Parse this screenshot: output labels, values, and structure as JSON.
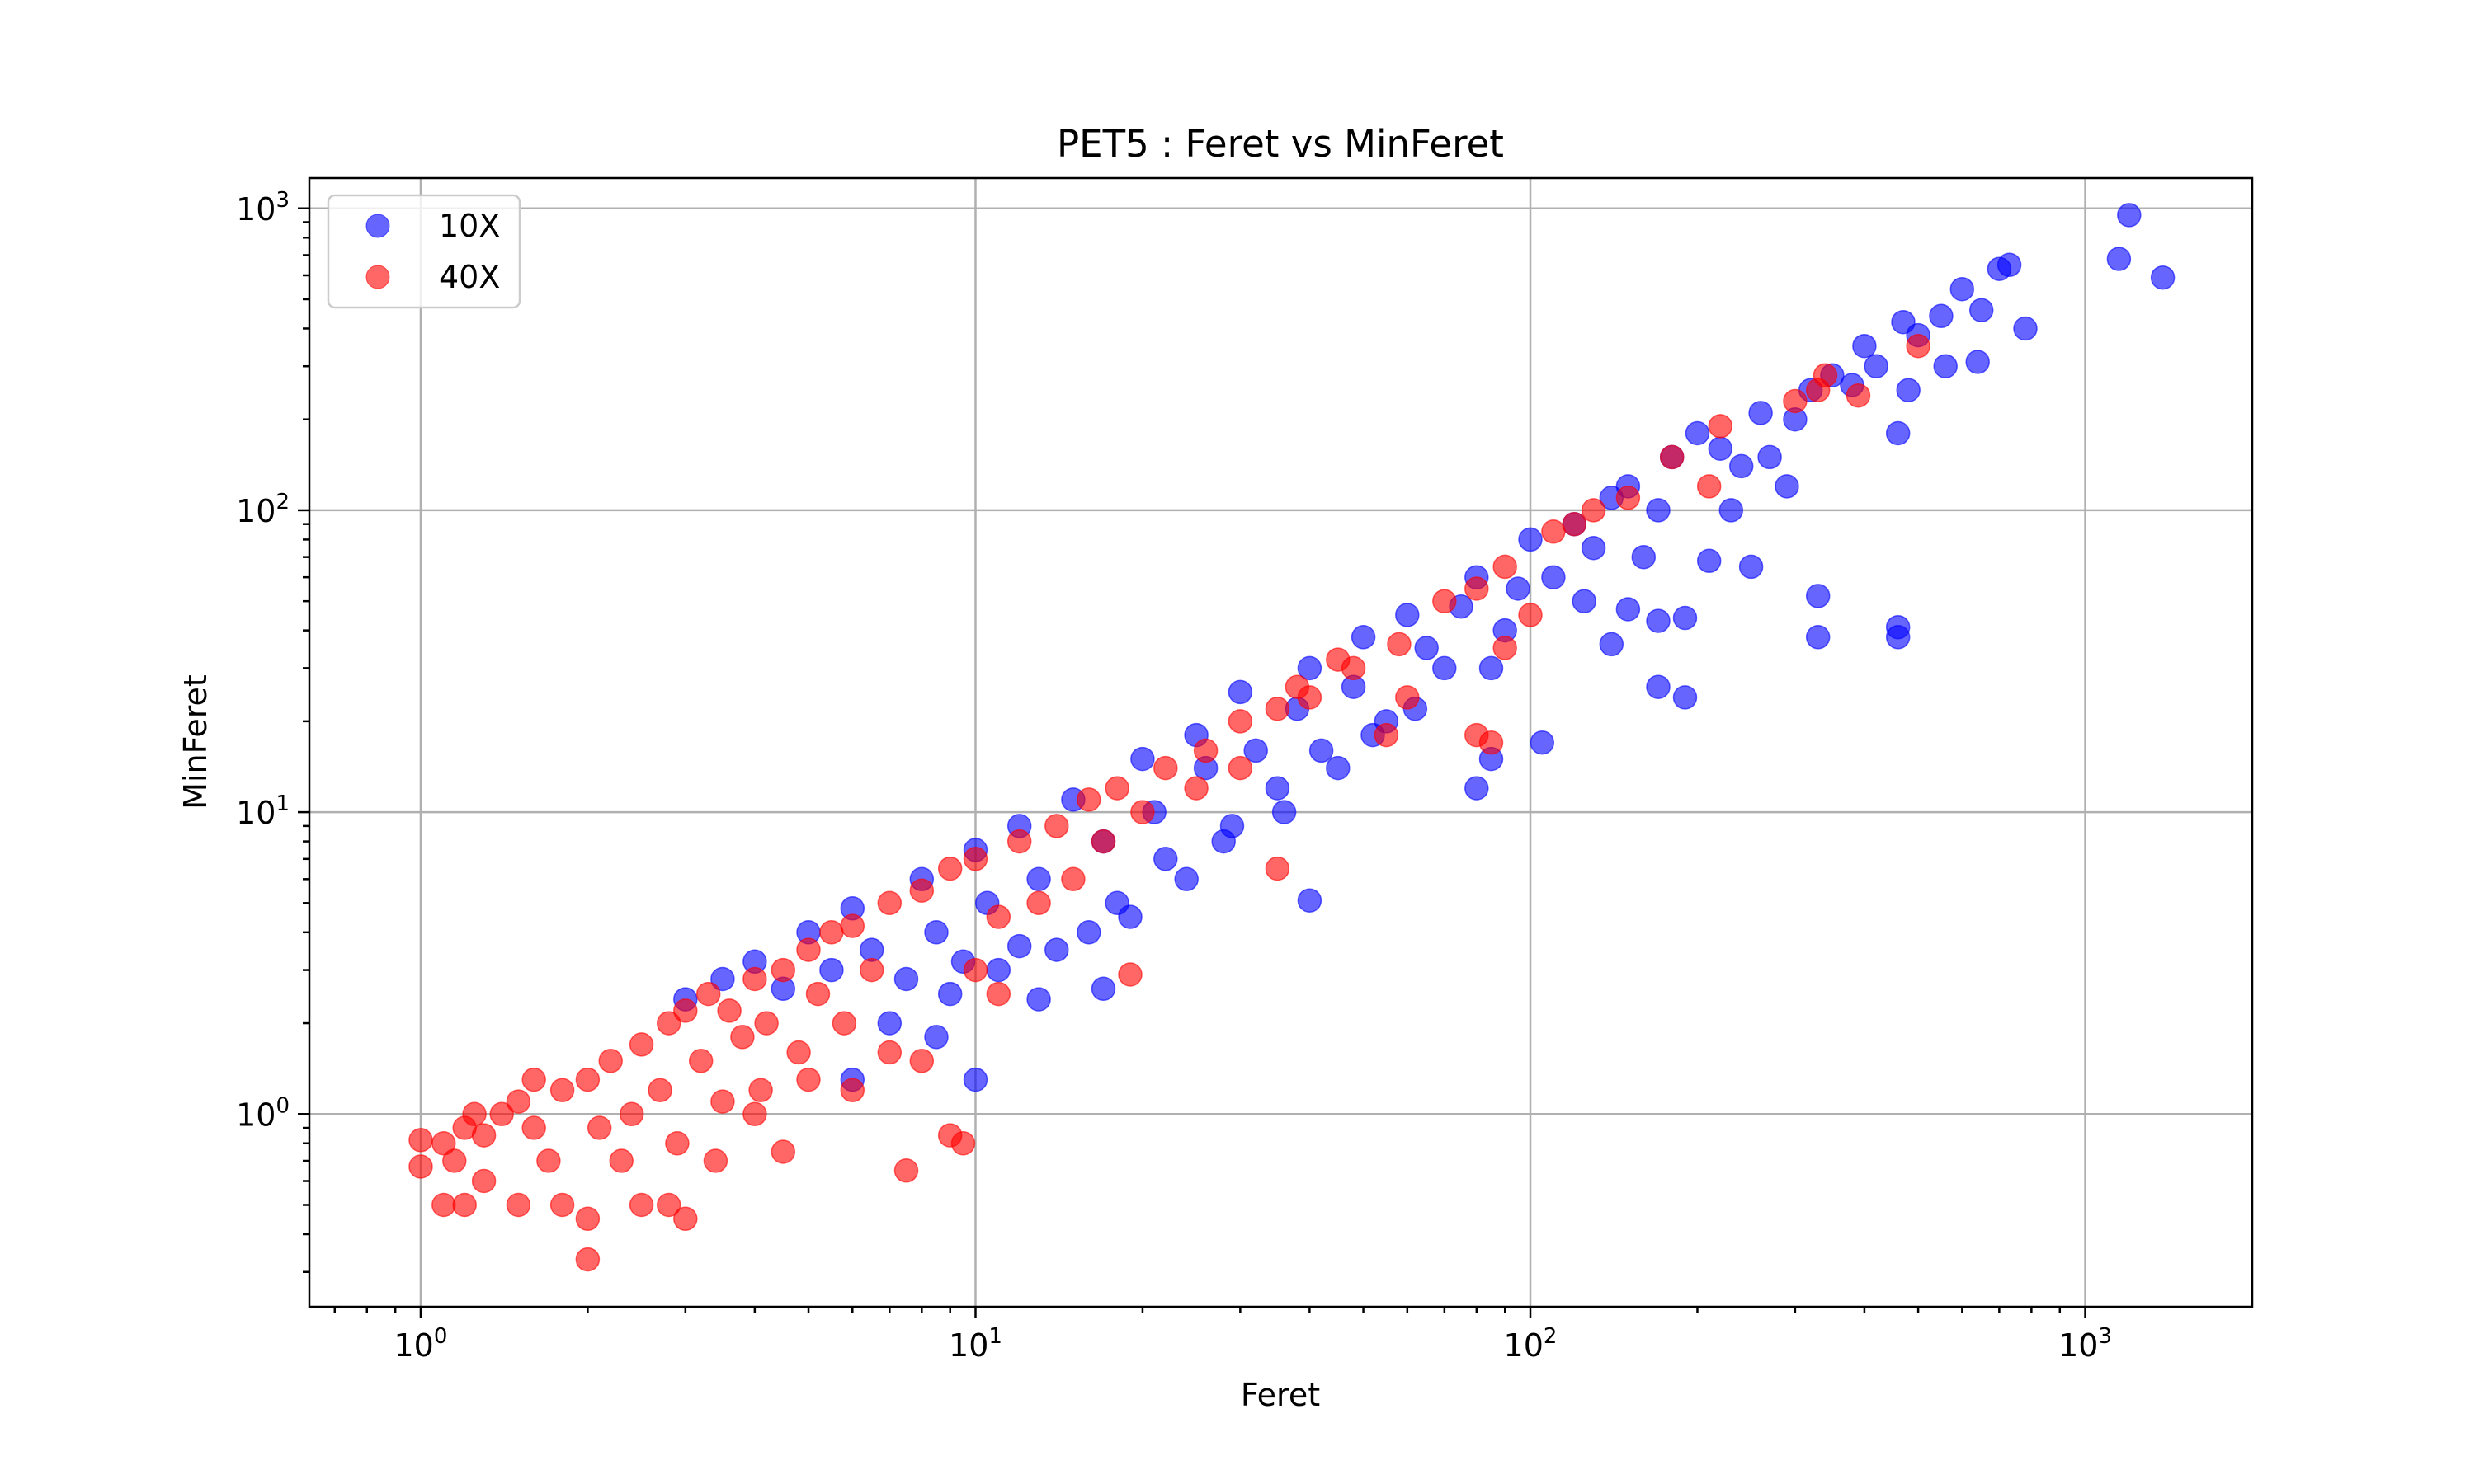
{
  "chart_data": {
    "type": "scatter",
    "title": "PET5 : Feret vs MinFeret",
    "xlabel": "Feret",
    "ylabel": "MinFeret",
    "xscale": "log",
    "yscale": "log",
    "xlim": [
      0.63,
      2000
    ],
    "ylim": [
      0.23,
      1260
    ],
    "xticks": [
      1,
      10,
      100,
      1000
    ],
    "yticks": [
      1,
      10,
      100,
      1000
    ],
    "grid": true,
    "legend_position": "upper-left",
    "series": [
      {
        "name": "10X",
        "color": "#0000ff",
        "points": [
          [
            1200,
            950
          ],
          [
            1150,
            680
          ],
          [
            1380,
            590
          ],
          [
            730,
            650
          ],
          [
            700,
            630
          ],
          [
            600,
            540
          ],
          [
            780,
            400
          ],
          [
            640,
            310
          ],
          [
            650,
            460
          ],
          [
            550,
            440
          ],
          [
            470,
            420
          ],
          [
            460,
            180
          ],
          [
            330,
            52
          ],
          [
            460,
            41
          ],
          [
            460,
            38
          ],
          [
            330,
            38
          ],
          [
            190,
            24
          ],
          [
            170,
            26
          ],
          [
            250,
            65
          ],
          [
            210,
            68
          ],
          [
            150,
            47
          ],
          [
            170,
            43
          ],
          [
            190,
            44
          ],
          [
            140,
            36
          ],
          [
            105,
            17
          ],
          [
            85,
            15
          ],
          [
            80,
            12
          ],
          [
            40,
            5.1
          ],
          [
            17,
            2.6
          ],
          [
            13,
            2.4
          ],
          [
            10,
            1.3
          ],
          [
            8.5,
            1.8
          ],
          [
            6,
            1.3
          ],
          [
            290,
            120
          ],
          [
            320,
            250
          ],
          [
            260,
            210
          ],
          [
            400,
            350
          ],
          [
            200,
            180
          ],
          [
            150,
            120
          ],
          [
            120,
            90
          ],
          [
            100,
            80
          ],
          [
            80,
            60
          ],
          [
            60,
            45
          ],
          [
            50,
            38
          ],
          [
            40,
            30
          ],
          [
            30,
            25
          ],
          [
            25,
            18
          ],
          [
            20,
            15
          ],
          [
            15,
            11
          ],
          [
            12,
            9
          ],
          [
            10,
            7.5
          ],
          [
            8,
            6
          ],
          [
            6,
            4.8
          ],
          [
            5,
            4
          ],
          [
            4,
            3.2
          ],
          [
            3.5,
            2.8
          ],
          [
            3,
            2.4
          ],
          [
            350,
            280
          ],
          [
            220,
            160
          ],
          [
            180,
            150
          ],
          [
            140,
            110
          ],
          [
            110,
            60
          ],
          [
            90,
            40
          ],
          [
            70,
            30
          ],
          [
            55,
            20
          ],
          [
            45,
            14
          ],
          [
            35,
            12
          ],
          [
            28,
            8
          ],
          [
            22,
            7
          ],
          [
            18,
            5
          ],
          [
            14,
            3.5
          ],
          [
            11,
            3
          ],
          [
            9,
            2.5
          ],
          [
            7,
            2
          ],
          [
            500,
            380
          ],
          [
            420,
            300
          ],
          [
            380,
            260
          ],
          [
            300,
            200
          ],
          [
            240,
            140
          ],
          [
            170,
            100
          ],
          [
            130,
            75
          ],
          [
            95,
            55
          ],
          [
            75,
            48
          ],
          [
            65,
            35
          ],
          [
            48,
            26
          ],
          [
            38,
            22
          ],
          [
            32,
            16
          ],
          [
            26,
            14
          ],
          [
            21,
            10
          ],
          [
            17,
            8
          ],
          [
            13,
            6
          ],
          [
            10.5,
            5
          ],
          [
            8.5,
            4
          ],
          [
            6.5,
            3.5
          ],
          [
            5.5,
            3
          ],
          [
            4.5,
            2.6
          ],
          [
            560,
            300
          ],
          [
            480,
            250
          ],
          [
            270,
            150
          ],
          [
            230,
            100
          ],
          [
            160,
            70
          ],
          [
            125,
            50
          ],
          [
            85,
            30
          ],
          [
            62,
            22
          ],
          [
            52,
            18
          ],
          [
            42,
            16
          ],
          [
            36,
            10
          ],
          [
            29,
            9
          ],
          [
            24,
            6
          ],
          [
            19,
            4.5
          ],
          [
            16,
            4
          ],
          [
            12,
            3.6
          ],
          [
            9.5,
            3.2
          ],
          [
            7.5,
            2.8
          ]
        ]
      },
      {
        "name": "40X",
        "color": "#ff0000",
        "points": [
          [
            500,
            350
          ],
          [
            340,
            280
          ],
          [
            330,
            250
          ],
          [
            390,
            240
          ],
          [
            300,
            230
          ],
          [
            220,
            190
          ],
          [
            210,
            120
          ],
          [
            150,
            110
          ],
          [
            120,
            90
          ],
          [
            110,
            85
          ],
          [
            100,
            45
          ],
          [
            90,
            35
          ],
          [
            85,
            17
          ],
          [
            80,
            18
          ],
          [
            60,
            24
          ],
          [
            55,
            18
          ],
          [
            45,
            32
          ],
          [
            40,
            24
          ],
          [
            35,
            22
          ],
          [
            30,
            14
          ],
          [
            25,
            12
          ],
          [
            20,
            10
          ],
          [
            17,
            8
          ],
          [
            15,
            6
          ],
          [
            13,
            5
          ],
          [
            11,
            4.5
          ],
          [
            10,
            3
          ],
          [
            35,
            6.5
          ],
          [
            19,
            2.9
          ],
          [
            11,
            2.5
          ],
          [
            9,
            0.85
          ],
          [
            9.5,
            0.8
          ],
          [
            7.5,
            0.65
          ],
          [
            8,
            1.5
          ],
          [
            7,
            1.6
          ],
          [
            6,
            1.2
          ],
          [
            5,
            1.3
          ],
          [
            4.5,
            0.75
          ],
          [
            4,
            1
          ],
          [
            3.5,
            1.1
          ],
          [
            3,
            0.45
          ],
          [
            2.8,
            0.5
          ],
          [
            2.5,
            0.5
          ],
          [
            2,
            0.33
          ],
          [
            2,
            0.45
          ],
          [
            1.8,
            0.5
          ],
          [
            1.5,
            0.5
          ],
          [
            1.3,
            0.6
          ],
          [
            1.2,
            0.5
          ],
          [
            1.1,
            0.5
          ],
          [
            1,
            0.82
          ],
          [
            1,
            0.67
          ],
          [
            1.1,
            0.8
          ],
          [
            1.2,
            0.9
          ],
          [
            1.3,
            0.85
          ],
          [
            1.4,
            1
          ],
          [
            1.5,
            1.1
          ],
          [
            1.6,
            0.9
          ],
          [
            1.8,
            1.2
          ],
          [
            2,
            1.3
          ],
          [
            2.2,
            1.5
          ],
          [
            2.5,
            1.7
          ],
          [
            2.8,
            2
          ],
          [
            3,
            2.2
          ],
          [
            3.3,
            2.5
          ],
          [
            3.6,
            2.2
          ],
          [
            4,
            2.8
          ],
          [
            4.5,
            3
          ],
          [
            5,
            3.5
          ],
          [
            5.5,
            4
          ],
          [
            6,
            4.2
          ],
          [
            7,
            5
          ],
          [
            8,
            5.5
          ],
          [
            9,
            6.5
          ],
          [
            10,
            7
          ],
          [
            12,
            8
          ],
          [
            14,
            9
          ],
          [
            16,
            11
          ],
          [
            18,
            12
          ],
          [
            22,
            14
          ],
          [
            26,
            16
          ],
          [
            30,
            20
          ],
          [
            38,
            26
          ],
          [
            48,
            30
          ],
          [
            58,
            36
          ],
          [
            70,
            50
          ],
          [
            80,
            55
          ],
          [
            90,
            65
          ],
          [
            130,
            100
          ],
          [
            180,
            150
          ],
          [
            1.7,
            0.7
          ],
          [
            2.1,
            0.9
          ],
          [
            2.4,
            1
          ],
          [
            2.7,
            1.2
          ],
          [
            3.2,
            1.5
          ],
          [
            3.8,
            1.8
          ],
          [
            4.2,
            2
          ],
          [
            5.2,
            2.5
          ],
          [
            6.5,
            3
          ],
          [
            1.15,
            0.7
          ],
          [
            1.25,
            1
          ],
          [
            1.6,
            1.3
          ],
          [
            2.3,
            0.7
          ],
          [
            2.9,
            0.8
          ],
          [
            3.4,
            0.7
          ],
          [
            4.1,
            1.2
          ],
          [
            4.8,
            1.6
          ],
          [
            5.8,
            2
          ]
        ]
      }
    ]
  }
}
